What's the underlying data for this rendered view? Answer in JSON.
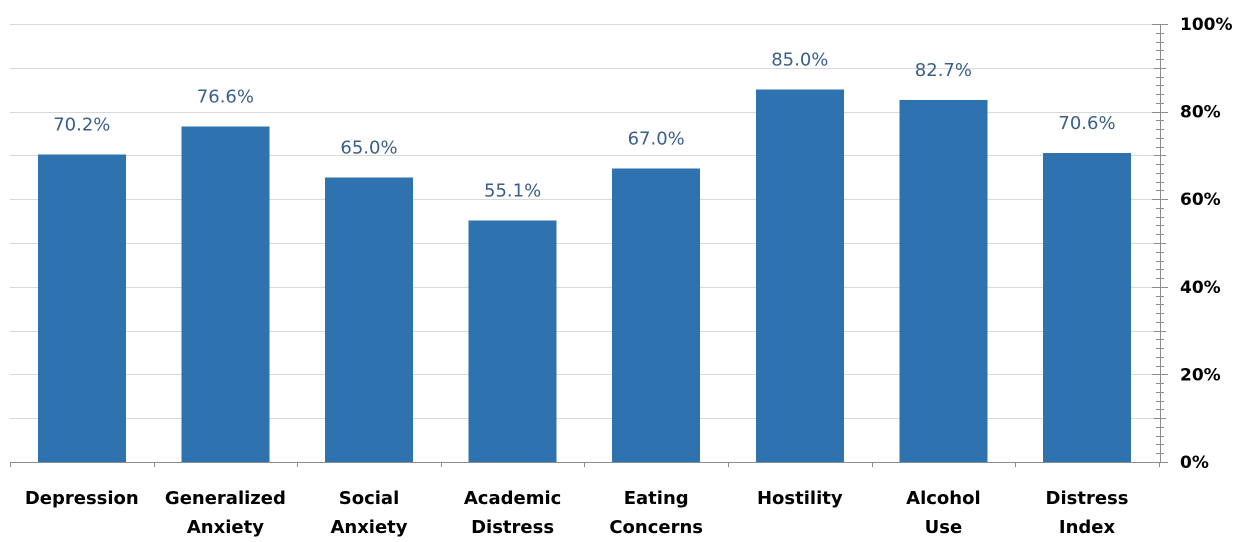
{
  "chart_data": {
    "type": "bar",
    "categories": [
      [
        "Depression"
      ],
      [
        "Generalized",
        "Anxiety"
      ],
      [
        "Social",
        "Anxiety"
      ],
      [
        "Academic",
        "Distress"
      ],
      [
        "Eating",
        "Concerns"
      ],
      [
        "Hostility"
      ],
      [
        "Alcohol",
        "Use"
      ],
      [
        "Distress",
        "Index"
      ]
    ],
    "values": [
      70.2,
      76.6,
      65.0,
      55.1,
      67.0,
      85.0,
      82.7,
      70.6
    ],
    "value_labels": [
      "70.2%",
      "76.6%",
      "65.0%",
      "55.1%",
      "67.0%",
      "85.0%",
      "82.7%",
      "70.6%"
    ],
    "title": "",
    "xlabel": "",
    "ylabel": "",
    "ylim": [
      0,
      100
    ],
    "y_ticks": [
      0,
      20,
      40,
      60,
      80,
      100
    ],
    "y_tick_labels": [
      "0%",
      "20%",
      "40%",
      "60%",
      "80%",
      "100%"
    ],
    "y_axis_side": "right",
    "grid": true,
    "legend": "none",
    "bar_color": "#2e72b0"
  }
}
